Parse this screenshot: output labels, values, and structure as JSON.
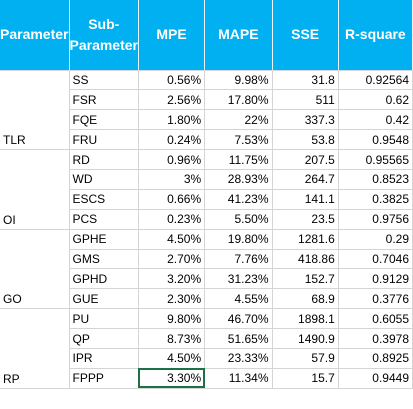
{
  "headers": [
    "Parameter",
    "Sub-Parameter",
    "MPE",
    "MAPE",
    "SSE",
    "R-square"
  ],
  "groups": [
    {
      "parameter": "TLR",
      "rows": [
        {
          "sub": "SS",
          "mpe": "0.56%",
          "mape": "9.98%",
          "sse": "31.8",
          "r2": "0.92564"
        },
        {
          "sub": "FSR",
          "mpe": "2.56%",
          "mape": "17.80%",
          "sse": "511",
          "r2": "0.62"
        },
        {
          "sub": "FQE",
          "mpe": "1.80%",
          "mape": "22%",
          "sse": "337.3",
          "r2": "0.42"
        },
        {
          "sub": "FRU",
          "mpe": "0.24%",
          "mape": "7.53%",
          "sse": "53.8",
          "r2": "0.9548"
        }
      ]
    },
    {
      "parameter": "OI",
      "rows": [
        {
          "sub": "RD",
          "mpe": "0.96%",
          "mape": "11.75%",
          "sse": "207.5",
          "r2": "0.95565"
        },
        {
          "sub": "WD",
          "mpe": "3%",
          "mape": "28.93%",
          "sse": "264.7",
          "r2": "0.8523"
        },
        {
          "sub": "ESCS",
          "mpe": "0.66%",
          "mape": "41.23%",
          "sse": "141.1",
          "r2": "0.3825"
        },
        {
          "sub": "PCS",
          "mpe": "0.23%",
          "mape": "5.50%",
          "sse": "23.5",
          "r2": "0.9756"
        }
      ]
    },
    {
      "parameter": "GO",
      "rows": [
        {
          "sub": "GPHE",
          "mpe": "4.50%",
          "mape": "19.80%",
          "sse": "1281.6",
          "r2": "0.29"
        },
        {
          "sub": "GMS",
          "mpe": "2.70%",
          "mape": "7.76%",
          "sse": "418.86",
          "r2": "0.7046"
        },
        {
          "sub": "GPHD",
          "mpe": "3.20%",
          "mape": "31.23%",
          "sse": "152.7",
          "r2": "0.9129"
        },
        {
          "sub": "GUE",
          "mpe": "2.30%",
          "mape": "4.55%",
          "sse": "68.9",
          "r2": "0.3776"
        }
      ]
    },
    {
      "parameter": "RP",
      "rows": [
        {
          "sub": "PU",
          "mpe": "9.80%",
          "mape": "46.70%",
          "sse": "1898.1",
          "r2": "0.6055"
        },
        {
          "sub": "QP",
          "mpe": "8.73%",
          "mape": "51.65%",
          "sse": "1490.9",
          "r2": "0.3978"
        },
        {
          "sub": "IPR",
          "mpe": "4.50%",
          "mape": "23.33%",
          "sse": "57.9",
          "r2": "0.8925"
        },
        {
          "sub": "FPPP",
          "mpe": "3.30%",
          "mape": "11.34%",
          "sse": "15.7",
          "r2": "0.9449"
        }
      ]
    }
  ],
  "colors": {
    "header_bg": "#00b0f0",
    "header_text": "#ffffff",
    "gridline": "#d4d4d4",
    "active_cell": "#1e7145"
  }
}
